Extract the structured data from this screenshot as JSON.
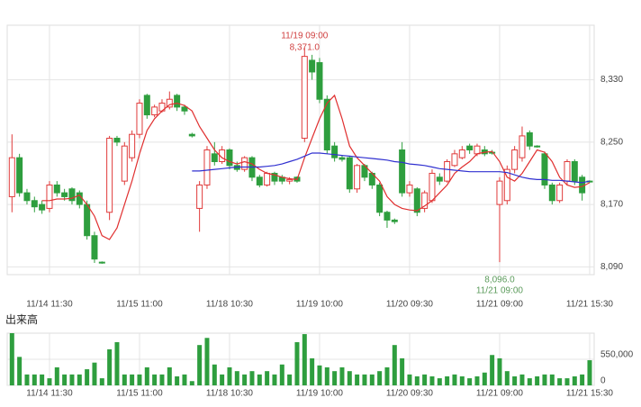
{
  "chart_data": [
    {
      "type": "candlestick",
      "categories": [
        null,
        null,
        null,
        null,
        null,
        "11/14 11:30",
        null,
        null,
        null,
        null,
        null,
        null,
        null,
        null,
        null,
        null,
        null,
        "11/15 11:00",
        null,
        null,
        null,
        null,
        null,
        null,
        null,
        null,
        null,
        null,
        null,
        "11/18 10:30",
        null,
        null,
        null,
        null,
        null,
        null,
        null,
        null,
        null,
        null,
        null,
        "11/19 10:00",
        null,
        null,
        null,
        null,
        null,
        null,
        null,
        null,
        null,
        null,
        null,
        "11/20 09:30",
        null,
        null,
        null,
        null,
        null,
        null,
        null,
        null,
        null,
        null,
        null,
        "11/21 09:00",
        null,
        null,
        null,
        null,
        null,
        null,
        null,
        null,
        null,
        null,
        null,
        "11/21 15:30"
      ],
      "open": [
        8180,
        8230,
        8185,
        8175,
        8170,
        8165,
        8195,
        8185,
        8190,
        8185,
        8170,
        8130,
        8096,
        8160,
        8255,
        8200,
        8230,
        8260,
        8310,
        8285,
        8290,
        8295,
        8310,
        8295,
        8260,
        8165,
        8195,
        8235,
        8225,
        8240,
        8220,
        8215,
        8230,
        8205,
        8195,
        8210,
        8205,
        8200,
        8205,
        8255,
        8355,
        8352,
        8305,
        8245,
        8230,
        8230,
        8190,
        8220,
        8210,
        8195,
        8160,
        8150,
        8240,
        8185,
        8190,
        8165,
        8175,
        8205,
        8200,
        8220,
        8230,
        8245,
        8235,
        8240,
        8237,
        8170,
        8175,
        8215,
        8230,
        8262,
        8245,
        8235,
        8195,
        8175,
        8200,
        8225,
        8205,
        8200
      ],
      "high": [
        8260,
        8235,
        8190,
        8180,
        8175,
        8200,
        8200,
        8190,
        8192,
        8188,
        8175,
        8135,
        8097,
        8258,
        8258,
        8250,
        8265,
        8305,
        8312,
        8298,
        8305,
        8315,
        8312,
        8298,
        8262,
        8200,
        8245,
        8250,
        8245,
        8242,
        8225,
        8232,
        8232,
        8208,
        8212,
        8212,
        8208,
        8205,
        8206,
        8371,
        8362,
        8358,
        8310,
        8250,
        8233,
        8232,
        8222,
        8222,
        8212,
        8198,
        8162,
        8152,
        8250,
        8200,
        8192,
        8188,
        8215,
        8210,
        8228,
        8240,
        8245,
        8248,
        8248,
        8245,
        8240,
        8205,
        8220,
        8245,
        8270,
        8265,
        8246,
        8238,
        8198,
        8198,
        8228,
        8228,
        8208,
        8201
      ],
      "low": [
        8160,
        8180,
        8170,
        8160,
        8158,
        8160,
        8180,
        8175,
        8170,
        8165,
        8125,
        8095,
        8094,
        8150,
        8245,
        8195,
        8225,
        8255,
        8280,
        8282,
        8288,
        8292,
        8290,
        8285,
        8256,
        8135,
        8190,
        8220,
        8222,
        8215,
        8212,
        8212,
        8200,
        8192,
        8193,
        8195,
        8196,
        8196,
        8198,
        8250,
        8330,
        8300,
        8235,
        8225,
        8225,
        8185,
        8185,
        8200,
        8190,
        8155,
        8140,
        8145,
        8180,
        8180,
        8155,
        8160,
        8172,
        8195,
        8198,
        8218,
        8228,
        8235,
        8232,
        8232,
        8234,
        8096,
        8170,
        8210,
        8225,
        8240,
        8243,
        8190,
        8170,
        8172,
        8195,
        8195,
        8175,
        8198
      ],
      "close": [
        8230,
        8185,
        8175,
        8167,
        8163,
        8195,
        8185,
        8180,
        8175,
        8170,
        8130,
        8100,
        8095,
        8255,
        8250,
        8245,
        8260,
        8300,
        8285,
        8295,
        8300,
        8305,
        8295,
        8290,
        8258,
        8195,
        8240,
        8225,
        8240,
        8220,
        8215,
        8230,
        8205,
        8195,
        8210,
        8200,
        8200,
        8202,
        8200,
        8360,
        8340,
        8305,
        8240,
        8230,
        8228,
        8190,
        8220,
        8205,
        8195,
        8160,
        8150,
        8148,
        8185,
        8195,
        8160,
        8185,
        8210,
        8200,
        8225,
        8235,
        8240,
        8240,
        8245,
        8235,
        8236,
        8200,
        8215,
        8240,
        8258,
        8245,
        8244,
        8195,
        8175,
        8195,
        8225,
        8200,
        8185,
        8199
      ],
      "up_color": "#e03a3a",
      "down_color": "#2e9e3e",
      "lines": [
        {
          "color": "#e03030",
          "values": [
            null,
            null,
            null,
            null,
            8175,
            8175,
            8177,
            8177,
            8178,
            8182,
            8170,
            8155,
            8130,
            8125,
            8140,
            8170,
            8200,
            8235,
            8265,
            8280,
            8290,
            8298,
            8300,
            8297,
            8290,
            8270,
            8255,
            8240,
            8230,
            8225,
            8222,
            8225,
            8222,
            8215,
            8210,
            8208,
            8205,
            8203,
            8202,
            8230,
            8255,
            8280,
            8300,
            8310,
            8280,
            8245,
            8230,
            8220,
            8210,
            8200,
            8180,
            8170,
            8165,
            8163,
            8162,
            8168,
            8175,
            8185,
            8195,
            8210,
            8218,
            8225,
            8235,
            8237,
            8238,
            8225,
            8205,
            8200,
            8210,
            8225,
            8240,
            8237,
            8225,
            8205,
            8195,
            8192,
            8193,
            8198
          ]
        },
        {
          "color": "#3030d0",
          "values": [
            null,
            null,
            null,
            null,
            null,
            null,
            null,
            null,
            null,
            null,
            null,
            null,
            null,
            null,
            null,
            null,
            null,
            null,
            null,
            null,
            null,
            null,
            null,
            null,
            8213,
            8213,
            8214,
            8215,
            8216,
            8217,
            8218,
            8218,
            8218,
            8218,
            8219,
            8220,
            8222,
            8225,
            8228,
            8232,
            8236,
            8236,
            8235,
            8234,
            8233,
            8232,
            8231,
            8230,
            8229,
            8228,
            8227,
            8225,
            8224,
            8222,
            8221,
            8220,
            8218,
            8216,
            8215,
            8214,
            8213,
            8212,
            8212,
            8212,
            8212,
            8212,
            8211,
            8208,
            8205,
            8203,
            8202,
            8202,
            8201,
            8201,
            8200,
            8199,
            8198,
            8200
          ]
        }
      ],
      "ylim": [
        8080,
        8400
      ],
      "yticks": [
        {
          "value": 8090,
          "label": "8,090"
        },
        {
          "value": 8170,
          "label": "8,170"
        },
        {
          "value": 8250,
          "label": "8,250"
        },
        {
          "value": 8330,
          "label": "8,330"
        }
      ],
      "grid": true,
      "annotations": [
        {
          "text": "11/19 09:00",
          "value": 8371,
          "label": "8,371.0",
          "color": "#d04040"
        },
        {
          "text": "11/21 09:00",
          "value": 8096,
          "label": "8,096.0",
          "color": "#5a9a5a"
        }
      ]
    },
    {
      "type": "bar",
      "title": "出来高",
      "categories": [
        null,
        null,
        null,
        null,
        null,
        "11/14 11:30",
        null,
        null,
        null,
        null,
        null,
        null,
        null,
        null,
        null,
        null,
        null,
        "11/15 11:00",
        null,
        null,
        null,
        null,
        null,
        null,
        null,
        null,
        null,
        null,
        null,
        "11/18 10:30",
        null,
        null,
        null,
        null,
        null,
        null,
        null,
        null,
        null,
        null,
        null,
        "11/19 10:00",
        null,
        null,
        null,
        null,
        null,
        null,
        null,
        null,
        null,
        null,
        null,
        "11/20 09:30",
        null,
        null,
        null,
        null,
        null,
        null,
        null,
        null,
        null,
        null,
        null,
        "11/21 09:00",
        null,
        null,
        null,
        null,
        null,
        null,
        null,
        null,
        null,
        null,
        null,
        "11/21 15:30"
      ],
      "values": [
        1100000,
        600000,
        230000,
        230000,
        230000,
        150000,
        380000,
        230000,
        230000,
        230000,
        340000,
        480000,
        150000,
        760000,
        910000,
        230000,
        230000,
        230000,
        380000,
        230000,
        230000,
        380000,
        190000,
        230000,
        90000,
        850000,
        1000000,
        440000,
        230000,
        380000,
        300000,
        230000,
        300000,
        230000,
        300000,
        230000,
        440000,
        230000,
        910000,
        1080000,
        570000,
        420000,
        380000,
        300000,
        380000,
        300000,
        230000,
        230000,
        230000,
        300000,
        380000,
        850000,
        570000,
        230000,
        190000,
        230000,
        190000,
        150000,
        190000,
        230000,
        190000,
        150000,
        190000,
        270000,
        640000,
        570000,
        300000,
        190000,
        230000,
        150000,
        190000,
        230000,
        230000,
        150000,
        150000,
        190000,
        230000,
        530000
      ],
      "color": "#2e9e3e",
      "ylim": [
        0,
        1100000
      ],
      "yticks": [
        0,
        {
          "value": 550000,
          "label": "550,000"
        }
      ],
      "grid": true
    }
  ]
}
